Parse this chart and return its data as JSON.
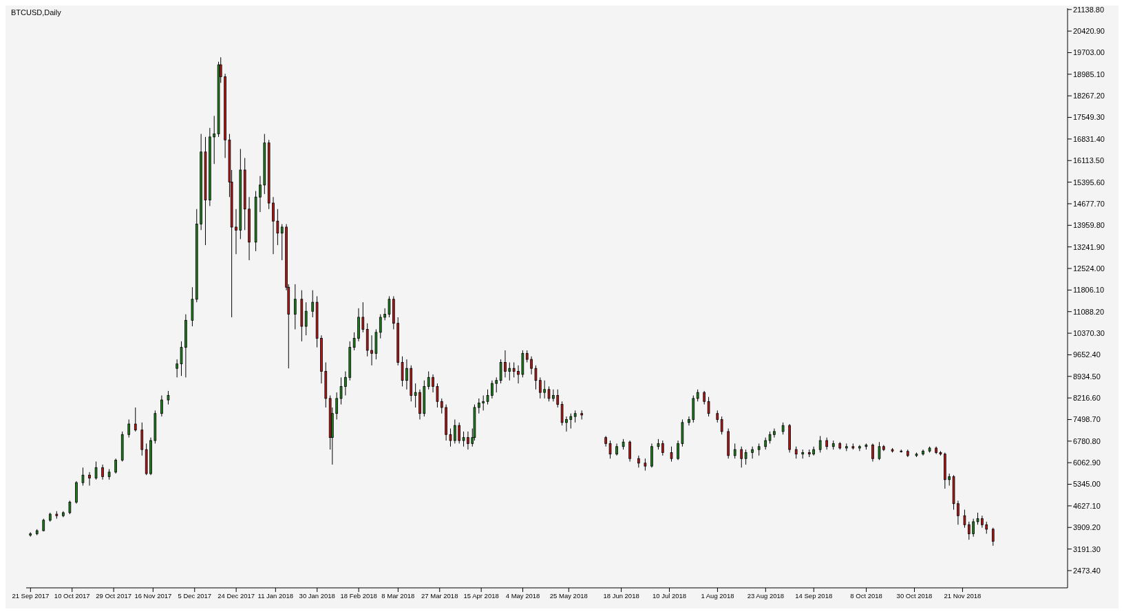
{
  "chart_data": {
    "type": "candlestick",
    "title": "BTCUSD,Daily",
    "x": [
      "2017-09-21",
      "2017-09-24",
      "2017-09-27",
      "2017-09-30",
      "2017-10-03",
      "2017-10-06",
      "2017-10-09",
      "2017-10-12",
      "2017-10-15",
      "2017-10-18",
      "2017-10-21",
      "2017-10-24",
      "2017-10-27",
      "2017-10-30",
      "2017-11-02",
      "2017-11-05",
      "2017-11-08",
      "2017-11-11",
      "2017-11-13",
      "2017-11-15",
      "2017-11-17",
      "2017-11-20",
      "2017-11-23",
      "2017-11-27",
      "2017-11-29",
      "2017-12-01",
      "2017-12-04",
      "2017-12-06",
      "2017-12-08",
      "2017-12-10",
      "2017-12-12",
      "2017-12-14",
      "2017-12-16",
      "2017-12-17",
      "2017-12-19",
      "2017-12-21",
      "2017-12-22",
      "2017-12-24",
      "2017-12-26",
      "2017-12-28",
      "2017-12-30",
      "2018-01-02",
      "2018-01-04",
      "2018-01-06",
      "2018-01-08",
      "2018-01-10",
      "2018-01-12",
      "2018-01-14",
      "2018-01-16",
      "2018-01-17",
      "2018-01-20",
      "2018-01-23",
      "2018-01-25",
      "2018-01-28",
      "2018-01-30",
      "2018-02-01",
      "2018-02-03",
      "2018-02-05",
      "2018-02-06",
      "2018-02-08",
      "2018-02-10",
      "2018-02-12",
      "2018-02-14",
      "2018-02-16",
      "2018-02-18",
      "2018-02-20",
      "2018-02-22",
      "2018-02-24",
      "2018-02-26",
      "2018-02-28",
      "2018-03-02",
      "2018-03-04",
      "2018-03-06",
      "2018-03-08",
      "2018-03-10",
      "2018-03-12",
      "2018-03-14",
      "2018-03-16",
      "2018-03-18",
      "2018-03-20",
      "2018-03-22",
      "2018-03-24",
      "2018-03-26",
      "2018-03-28",
      "2018-03-30",
      "2018-04-01",
      "2018-04-03",
      "2018-04-05",
      "2018-04-07",
      "2018-04-09",
      "2018-04-11",
      "2018-04-12",
      "2018-04-14",
      "2018-04-16",
      "2018-04-18",
      "2018-04-20",
      "2018-04-22",
      "2018-04-24",
      "2018-04-26",
      "2018-04-28",
      "2018-04-30",
      "2018-05-02",
      "2018-05-04",
      "2018-05-06",
      "2018-05-08",
      "2018-05-10",
      "2018-05-12",
      "2018-05-14",
      "2018-05-16",
      "2018-05-18",
      "2018-05-20",
      "2018-05-22",
      "2018-05-24",
      "2018-05-26",
      "2018-05-28",
      "2018-05-31",
      "2018-06-11",
      "2018-06-13",
      "2018-06-16",
      "2018-06-19",
      "2018-06-22",
      "2018-06-26",
      "2018-06-29",
      "2018-07-02",
      "2018-07-05",
      "2018-07-07",
      "2018-07-11",
      "2018-07-14",
      "2018-07-16",
      "2018-07-19",
      "2018-07-21",
      "2018-07-23",
      "2018-07-26",
      "2018-07-28",
      "2018-08-01",
      "2018-08-03",
      "2018-08-06",
      "2018-08-09",
      "2018-08-12",
      "2018-08-14",
      "2018-08-17",
      "2018-08-20",
      "2018-08-23",
      "2018-08-25",
      "2018-08-27",
      "2018-08-31",
      "2018-09-03",
      "2018-09-06",
      "2018-09-09",
      "2018-09-12",
      "2018-09-14",
      "2018-09-17",
      "2018-09-20",
      "2018-09-23",
      "2018-09-26",
      "2018-09-29",
      "2018-10-02",
      "2018-10-05",
      "2018-10-08",
      "2018-10-11",
      "2018-10-14",
      "2018-10-16",
      "2018-10-20",
      "2018-10-24",
      "2018-10-27",
      "2018-10-31",
      "2018-11-03",
      "2018-11-06",
      "2018-11-09",
      "2018-11-11",
      "2018-11-13",
      "2018-11-15",
      "2018-11-17",
      "2018-11-19",
      "2018-11-22",
      "2018-11-24",
      "2018-11-26",
      "2018-11-28",
      "2018-11-30",
      "2018-12-02",
      "2018-12-05"
    ],
    "ohlc": [
      [
        3650,
        3750,
        3600,
        3700
      ],
      [
        3700,
        3850,
        3650,
        3800
      ],
      [
        3800,
        4200,
        3780,
        4150
      ],
      [
        4150,
        4400,
        4100,
        4350
      ],
      [
        4350,
        4450,
        4200,
        4300
      ],
      [
        4300,
        4450,
        4250,
        4400
      ],
      [
        4400,
        4800,
        4350,
        4750
      ],
      [
        4750,
        5450,
        4700,
        5400
      ],
      [
        5400,
        5900,
        5300,
        5650
      ],
      [
        5650,
        5750,
        5300,
        5550
      ],
      [
        5550,
        6100,
        5500,
        5900
      ],
      [
        5900,
        6000,
        5500,
        5600
      ],
      [
        5600,
        5850,
        5500,
        5750
      ],
      [
        5750,
        6200,
        5700,
        6150
      ],
      [
        6150,
        7100,
        6100,
        7000
      ],
      [
        7000,
        7500,
        6900,
        7350
      ],
      [
        7350,
        7900,
        7100,
        7150
      ],
      [
        7150,
        7400,
        6300,
        6500
      ],
      [
        6500,
        6700,
        5650,
        5700
      ],
      [
        5700,
        6900,
        5650,
        6800
      ],
      [
        6800,
        7800,
        6700,
        7700
      ],
      [
        7700,
        8300,
        7600,
        8150
      ],
      [
        8150,
        8450,
        8000,
        8300
      ],
      [
        9200,
        9500,
        8900,
        9350
      ],
      [
        9350,
        10100,
        8950,
        9900
      ],
      [
        9900,
        11000,
        8900,
        10800
      ],
      [
        10800,
        11900,
        10600,
        11500
      ],
      [
        11500,
        14500,
        11400,
        14000
      ],
      [
        14000,
        17000,
        13800,
        16400
      ],
      [
        16400,
        16900,
        13300,
        14800
      ],
      [
        14800,
        17200,
        14600,
        16900
      ],
      [
        16900,
        17600,
        16000,
        17000
      ],
      [
        17000,
        19400,
        16900,
        19300
      ],
      [
        19300,
        19550,
        18700,
        18900
      ],
      [
        18900,
        19000,
        16200,
        16800
      ],
      [
        16800,
        17000,
        14900,
        15400
      ],
      [
        15400,
        15800,
        10900,
        13900
      ],
      [
        13900,
        14500,
        13000,
        13800
      ],
      [
        13800,
        16500,
        13500,
        15800
      ],
      [
        15800,
        16200,
        13800,
        14500
      ],
      [
        14500,
        14900,
        12800,
        13400
      ],
      [
        13400,
        15100,
        13100,
        14900
      ],
      [
        14900,
        15600,
        14400,
        15300
      ],
      [
        15300,
        17000,
        15000,
        16700
      ],
      [
        16700,
        16800,
        14500,
        14700
      ],
      [
        14700,
        14900,
        13000,
        14100
      ],
      [
        14100,
        14500,
        13300,
        13700
      ],
      [
        13700,
        14000,
        12800,
        13900
      ],
      [
        13900,
        14000,
        11800,
        11900
      ],
      [
        11900,
        12000,
        9200,
        11000
      ],
      [
        11000,
        12000,
        10500,
        11500
      ],
      [
        11500,
        11800,
        10100,
        10600
      ],
      [
        10600,
        11400,
        10300,
        11100
      ],
      [
        11100,
        11800,
        10900,
        11400
      ],
      [
        11400,
        11600,
        9900,
        10200
      ],
      [
        10200,
        10300,
        8700,
        9100
      ],
      [
        9100,
        9400,
        7900,
        8200
      ],
      [
        8200,
        8300,
        6500,
        6900
      ],
      [
        6900,
        7900,
        6000,
        7700
      ],
      [
        7700,
        8400,
        7500,
        8200
      ],
      [
        8200,
        8900,
        8000,
        8600
      ],
      [
        8600,
        9100,
        8300,
        8900
      ],
      [
        8900,
        10100,
        8800,
        9900
      ],
      [
        9900,
        10400,
        9800,
        10200
      ],
      [
        10200,
        11200,
        10100,
        10900
      ],
      [
        10900,
        11400,
        10400,
        10500
      ],
      [
        10500,
        10700,
        9600,
        9800
      ],
      [
        9800,
        10300,
        9300,
        9700
      ],
      [
        9700,
        10500,
        9500,
        10400
      ],
      [
        10400,
        11000,
        10200,
        10900
      ],
      [
        10900,
        11200,
        10800,
        11000
      ],
      [
        11000,
        11600,
        10900,
        11500
      ],
      [
        11500,
        11600,
        10500,
        10700
      ],
      [
        10700,
        10900,
        9300,
        9400
      ],
      [
        9400,
        9600,
        8600,
        8800
      ],
      [
        8800,
        9500,
        8500,
        9200
      ],
      [
        9200,
        9300,
        8100,
        8300
      ],
      [
        8300,
        8700,
        7900,
        8400
      ],
      [
        8400,
        8500,
        7500,
        7700
      ],
      [
        7700,
        8800,
        7600,
        8600
      ],
      [
        8600,
        9100,
        8500,
        8900
      ],
      [
        8900,
        9000,
        8400,
        8600
      ],
      [
        8600,
        8700,
        7900,
        8100
      ],
      [
        8100,
        8200,
        7700,
        7900
      ],
      [
        7900,
        8000,
        6800,
        7000
      ],
      [
        7000,
        7200,
        6600,
        6800
      ],
      [
        6800,
        7500,
        6700,
        7300
      ],
      [
        7300,
        7400,
        6700,
        6800
      ],
      [
        6800,
        7100,
        6600,
        6900
      ],
      [
        6900,
        7100,
        6500,
        6700
      ],
      [
        6700,
        7200,
        6600,
        6900
      ],
      [
        6900,
        8000,
        6800,
        7900
      ],
      [
        7900,
        8200,
        7700,
        8050
      ],
      [
        8050,
        8300,
        7800,
        8100
      ],
      [
        8100,
        8500,
        8000,
        8300
      ],
      [
        8300,
        8800,
        8200,
        8700
      ],
      [
        8700,
        8900,
        8400,
        8800
      ],
      [
        8800,
        9500,
        8700,
        9400
      ],
      [
        9400,
        9800,
        8900,
        9100
      ],
      [
        9100,
        9400,
        8800,
        9200
      ],
      [
        9200,
        9400,
        8900,
        9100
      ],
      [
        9100,
        9300,
        8700,
        9000
      ],
      [
        9000,
        9800,
        8900,
        9700
      ],
      [
        9700,
        9800,
        9400,
        9500
      ],
      [
        9500,
        9600,
        9000,
        9200
      ],
      [
        9200,
        9300,
        8500,
        8800
      ],
      [
        8800,
        8900,
        8200,
        8400
      ],
      [
        8400,
        8800,
        8200,
        8500
      ],
      [
        8500,
        8600,
        8100,
        8200
      ],
      [
        8200,
        8500,
        8100,
        8300
      ],
      [
        8300,
        8500,
        7900,
        8000
      ],
      [
        8000,
        8100,
        7300,
        7400
      ],
      [
        7400,
        7600,
        7100,
        7500
      ],
      [
        7500,
        7700,
        7200,
        7600
      ],
      [
        7600,
        7800,
        7400,
        7700
      ],
      [
        7700,
        7800,
        7500,
        7650
      ],
      [
        6900,
        6950,
        6600,
        6700
      ],
      [
        6700,
        6800,
        6200,
        6350
      ],
      [
        6350,
        6700,
        6300,
        6600
      ],
      [
        6600,
        6850,
        6500,
        6750
      ],
      [
        6750,
        6800,
        6100,
        6200
      ],
      [
        6200,
        6300,
        5900,
        6050
      ],
      [
        6050,
        6200,
        5800,
        5950
      ],
      [
        5950,
        6700,
        5900,
        6600
      ],
      [
        6600,
        6850,
        6500,
        6700
      ],
      [
        6700,
        6800,
        6300,
        6400
      ],
      [
        6400,
        6600,
        6100,
        6200
      ],
      [
        6200,
        6800,
        6150,
        6700
      ],
      [
        6700,
        7500,
        6600,
        7400
      ],
      [
        7400,
        7600,
        7300,
        7500
      ],
      [
        7500,
        8300,
        7400,
        8200
      ],
      [
        8200,
        8500,
        8100,
        8400
      ],
      [
        8400,
        8450,
        8000,
        8100
      ],
      [
        8100,
        8250,
        7600,
        7700
      ],
      [
        7700,
        7800,
        7400,
        7500
      ],
      [
        7500,
        7600,
        7000,
        7100
      ],
      [
        7100,
        7200,
        6200,
        6300
      ],
      [
        6300,
        6700,
        6200,
        6500
      ],
      [
        6500,
        6600,
        5900,
        6200
      ],
      [
        6200,
        6500,
        6000,
        6400
      ],
      [
        6400,
        6600,
        6200,
        6500
      ],
      [
        6500,
        6700,
        6300,
        6600
      ],
      [
        6600,
        6900,
        6500,
        6800
      ],
      [
        6800,
        7100,
        6700,
        7000
      ],
      [
        7000,
        7200,
        6900,
        7100
      ],
      [
        7100,
        7400,
        7000,
        7300
      ],
      [
        7300,
        7350,
        6400,
        6500
      ],
      [
        6500,
        6600,
        6200,
        6350
      ],
      [
        6350,
        6500,
        6200,
        6400
      ],
      [
        6400,
        6500,
        6250,
        6350
      ],
      [
        6350,
        6600,
        6300,
        6500
      ],
      [
        6500,
        6950,
        6400,
        6800
      ],
      [
        6800,
        6900,
        6500,
        6600
      ],
      [
        6600,
        6800,
        6500,
        6700
      ],
      [
        6700,
        6750,
        6500,
        6550
      ],
      [
        6550,
        6700,
        6450,
        6600
      ],
      [
        6600,
        6700,
        6500,
        6550
      ],
      [
        6550,
        6650,
        6450,
        6600
      ],
      [
        6600,
        6700,
        6500,
        6650
      ],
      [
        6650,
        6700,
        6100,
        6200
      ],
      [
        6200,
        6750,
        6150,
        6600
      ],
      [
        6600,
        6650,
        6450,
        6500
      ],
      [
        6500,
        6550,
        6400,
        6450
      ],
      [
        6450,
        6500,
        6400,
        6440
      ],
      [
        6440,
        6500,
        6250,
        6300
      ],
      [
        6300,
        6400,
        6250,
        6350
      ],
      [
        6350,
        6500,
        6300,
        6450
      ],
      [
        6450,
        6600,
        6400,
        6550
      ],
      [
        6550,
        6600,
        6350,
        6400
      ],
      [
        6400,
        6450,
        6300,
        6350
      ],
      [
        6350,
        6400,
        5200,
        5500
      ],
      [
        5500,
        5700,
        5300,
        5600
      ],
      [
        5600,
        5650,
        4500,
        4700
      ],
      [
        4700,
        4800,
        4000,
        4300
      ],
      [
        4300,
        4500,
        3900,
        4000
      ],
      [
        4000,
        4100,
        3500,
        3700
      ],
      [
        3700,
        4200,
        3600,
        4100
      ],
      [
        4100,
        4400,
        4000,
        4200
      ],
      [
        4200,
        4300,
        3900,
        4000
      ],
      [
        4000,
        4100,
        3700,
        3850
      ],
      [
        3850,
        3900,
        3300,
        3450
      ]
    ],
    "colors": [
      "#1e7b1e",
      "#1e7b1e",
      "#1e7b1e",
      "#1e7b1e",
      "#b01818",
      "#1e7b1e",
      "#1e7b1e",
      "#1e7b1e",
      "#1e7b1e",
      "#b01818",
      "#1e7b1e",
      "#b01818",
      "#1e7b1e",
      "#1e7b1e",
      "#1e7b1e",
      "#1e7b1e",
      "#b01818",
      "#b01818",
      "#b01818",
      "#1e7b1e",
      "#1e7b1e",
      "#1e7b1e",
      "#1e7b1e",
      "#1e7b1e",
      "#1e7b1e",
      "#1e7b1e",
      "#1e7b1e",
      "#1e7b1e",
      "#1e7b1e",
      "#b01818",
      "#1e7b1e",
      "#1e7b1e",
      "#1e7b1e",
      "#b01818",
      "#b01818",
      "#b01818",
      "#b01818",
      "#b01818",
      "#1e7b1e",
      "#b01818",
      "#b01818",
      "#1e7b1e",
      "#1e7b1e",
      "#1e7b1e",
      "#b01818",
      "#b01818",
      "#b01818",
      "#1e7b1e",
      "#b01818",
      "#b01818",
      "#1e7b1e",
      "#b01818",
      "#1e7b1e",
      "#1e7b1e",
      "#b01818",
      "#b01818",
      "#b01818",
      "#b01818",
      "#1e7b1e",
      "#1e7b1e",
      "#1e7b1e",
      "#1e7b1e",
      "#1e7b1e",
      "#1e7b1e",
      "#1e7b1e",
      "#b01818",
      "#b01818",
      "#b01818",
      "#1e7b1e",
      "#1e7b1e",
      "#1e7b1e",
      "#1e7b1e",
      "#b01818",
      "#b01818",
      "#b01818",
      "#1e7b1e",
      "#b01818",
      "#1e7b1e",
      "#b01818",
      "#1e7b1e",
      "#1e7b1e",
      "#b01818",
      "#b01818",
      "#b01818",
      "#b01818",
      "#b01818",
      "#1e7b1e",
      "#b01818",
      "#1e7b1e",
      "#b01818",
      "#1e7b1e",
      "#1e7b1e",
      "#1e7b1e",
      "#1e7b1e",
      "#1e7b1e",
      "#1e7b1e",
      "#1e7b1e",
      "#1e7b1e",
      "#b01818",
      "#1e7b1e",
      "#b01818",
      "#b01818",
      "#1e7b1e",
      "#b01818",
      "#b01818",
      "#b01818",
      "#b01818",
      "#1e7b1e",
      "#b01818",
      "#1e7b1e",
      "#b01818",
      "#b01818",
      "#1e7b1e",
      "#1e7b1e",
      "#1e7b1e",
      "#b01818",
      "#b01818",
      "#b01818",
      "#1e7b1e",
      "#1e7b1e",
      "#b01818",
      "#b01818",
      "#b01818",
      "#1e7b1e",
      "#1e7b1e",
      "#b01818",
      "#b01818",
      "#1e7b1e",
      "#1e7b1e",
      "#1e7b1e",
      "#1e7b1e",
      "#1e7b1e",
      "#b01818",
      "#b01818",
      "#b01818",
      "#b01818",
      "#b01818",
      "#1e7b1e",
      "#b01818",
      "#1e7b1e",
      "#1e7b1e",
      "#1e7b1e",
      "#1e7b1e",
      "#1e7b1e",
      "#1e7b1e",
      "#1e7b1e",
      "#b01818",
      "#b01818",
      "#1e7b1e",
      "#b01818",
      "#1e7b1e",
      "#1e7b1e",
      "#b01818",
      "#1e7b1e",
      "#b01818",
      "#1e7b1e",
      "#b01818",
      "#1e7b1e",
      "#1e7b1e",
      "#b01818",
      "#1e7b1e",
      "#b01818",
      "#b01818",
      "#b01818",
      "#b01818",
      "#1e7b1e",
      "#1e7b1e",
      "#1e7b1e",
      "#b01818",
      "#b01818",
      "#b01818",
      "#1e7b1e",
      "#b01818",
      "#b01818",
      "#b01818",
      "#b01818",
      "#1e7b1e",
      "#1e7b1e",
      "#b01818",
      "#b01818",
      "#b01818"
    ],
    "xlim": [
      "2017-09-19",
      "2019-01-08"
    ],
    "xticks": [
      {
        "value": "2017-09-21",
        "label": "21 Sep 2017"
      },
      {
        "value": "2017-10-10",
        "label": "10 Oct 2017"
      },
      {
        "value": "2017-10-29",
        "label": "29 Oct 2017"
      },
      {
        "value": "2017-11-16",
        "label": "16 Nov 2017"
      },
      {
        "value": "2017-12-05",
        "label": "5 Dec 2017"
      },
      {
        "value": "2017-12-24",
        "label": "24 Dec 2017"
      },
      {
        "value": "2018-01-11",
        "label": "11 Jan 2018"
      },
      {
        "value": "2018-01-30",
        "label": "30 Jan 2018"
      },
      {
        "value": "2018-02-18",
        "label": "18 Feb 2018"
      },
      {
        "value": "2018-03-08",
        "label": "8 Mar 2018"
      },
      {
        "value": "2018-03-27",
        "label": "27 Mar 2018"
      },
      {
        "value": "2018-04-15",
        "label": "15 Apr 2018"
      },
      {
        "value": "2018-05-04",
        "label": "4 May 2018"
      },
      {
        "value": "2018-05-25",
        "label": "25 May 2018"
      },
      {
        "value": "2018-06-18",
        "label": "18 Jun 2018"
      },
      {
        "value": "2018-07-10",
        "label": "10 Jul 2018"
      },
      {
        "value": "2018-08-01",
        "label": "1 Aug 2018"
      },
      {
        "value": "2018-08-23",
        "label": "23 Aug 2018"
      },
      {
        "value": "2018-09-14",
        "label": "14 Sep 2018"
      },
      {
        "value": "2018-10-08",
        "label": "8 Oct 2018"
      },
      {
        "value": "2018-10-30",
        "label": "30 Oct 2018"
      },
      {
        "value": "2018-11-21",
        "label": "21 Nov 2018"
      }
    ],
    "ylim": [
      1900,
      21180
    ],
    "yticks": [
      {
        "value": 21138.8,
        "label": "21138.80"
      },
      {
        "value": 20420.9,
        "label": "20420.90"
      },
      {
        "value": 19703,
        "label": "19703.00"
      },
      {
        "value": 18985.1,
        "label": "18985.10"
      },
      {
        "value": 18267.2,
        "label": "18267.20"
      },
      {
        "value": 17549.3,
        "label": "17549.30"
      },
      {
        "value": 16831.4,
        "label": "16831.40"
      },
      {
        "value": 16113.5,
        "label": "16113.50"
      },
      {
        "value": 15395.6,
        "label": "15395.60"
      },
      {
        "value": 14677.7,
        "label": "14677.70"
      },
      {
        "value": 13959.8,
        "label": "13959.80"
      },
      {
        "value": 13241.9,
        "label": "13241.90"
      },
      {
        "value": 12524,
        "label": "12524.00"
      },
      {
        "value": 11806.1,
        "label": "11806.10"
      },
      {
        "value": 11088.2,
        "label": "11088.20"
      },
      {
        "value": 10370.3,
        "label": "10370.30"
      },
      {
        "value": 9652.4,
        "label": "9652.40"
      },
      {
        "value": 8934.5,
        "label": "8934.50"
      },
      {
        "value": 8216.6,
        "label": "8216.60"
      },
      {
        "value": 7498.7,
        "label": "7498.70"
      },
      {
        "value": 6780.8,
        "label": "6780.80"
      },
      {
        "value": 6062.9,
        "label": "6062.90"
      },
      {
        "value": 5345,
        "label": "5345.00"
      },
      {
        "value": 4627.1,
        "label": "4627.10"
      },
      {
        "value": 3909.2,
        "label": "3909.20"
      },
      {
        "value": 3191.3,
        "label": "3191.30"
      },
      {
        "value": 2473.4,
        "label": "2473.40"
      }
    ],
    "legend": false
  }
}
